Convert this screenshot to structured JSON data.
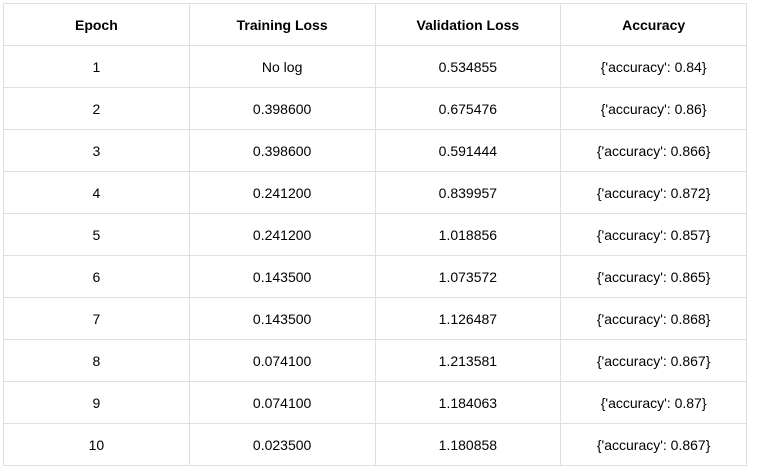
{
  "table": {
    "columns": [
      "Epoch",
      "Training Loss",
      "Validation Loss",
      "Accuracy"
    ],
    "rows": [
      [
        "1",
        "No log",
        "0.534855",
        "{'accuracy': 0.84}"
      ],
      [
        "2",
        "0.398600",
        "0.675476",
        "{'accuracy': 0.86}"
      ],
      [
        "3",
        "0.398600",
        "0.591444",
        "{'accuracy': 0.866}"
      ],
      [
        "4",
        "0.241200",
        "0.839957",
        "{'accuracy': 0.872}"
      ],
      [
        "5",
        "0.241200",
        "1.018856",
        "{'accuracy': 0.857}"
      ],
      [
        "6",
        "0.143500",
        "1.073572",
        "{'accuracy': 0.865}"
      ],
      [
        "7",
        "0.143500",
        "1.126487",
        "{'accuracy': 0.868}"
      ],
      [
        "8",
        "0.074100",
        "1.213581",
        "{'accuracy': 0.867}"
      ],
      [
        "9",
        "0.074100",
        "1.184063",
        "{'accuracy': 0.87}"
      ],
      [
        "10",
        "0.023500",
        "1.180858",
        "{'accuracy': 0.867}"
      ]
    ]
  },
  "chart_data": {
    "type": "table",
    "title": "",
    "categories": [
      "Epoch",
      "Training Loss",
      "Validation Loss",
      "Accuracy"
    ],
    "series": [
      {
        "name": "Epoch",
        "values": [
          1,
          2,
          3,
          4,
          5,
          6,
          7,
          8,
          9,
          10
        ]
      },
      {
        "name": "Training Loss",
        "values": [
          null,
          0.3986,
          0.3986,
          0.2412,
          0.2412,
          0.1435,
          0.1435,
          0.0741,
          0.0741,
          0.0235
        ]
      },
      {
        "name": "Validation Loss",
        "values": [
          0.534855,
          0.675476,
          0.591444,
          0.839957,
          1.018856,
          1.073572,
          1.126487,
          1.213581,
          1.184063,
          1.180858
        ]
      },
      {
        "name": "Accuracy",
        "values": [
          0.84,
          0.86,
          0.866,
          0.872,
          0.857,
          0.865,
          0.868,
          0.867,
          0.87,
          0.867
        ]
      }
    ]
  },
  "colors": {
    "border": "#dfdfdf",
    "text": "#000000",
    "background": "#ffffff"
  }
}
